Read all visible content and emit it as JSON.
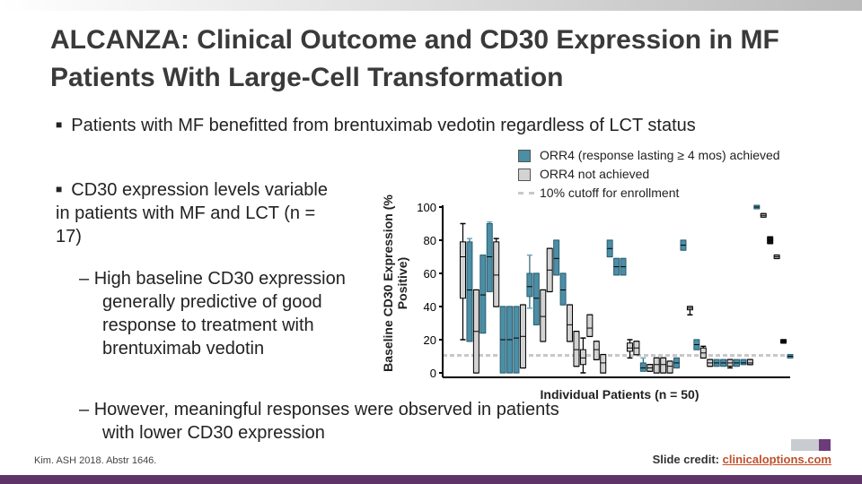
{
  "title": "ALCANZA: Clinical Outcome and CD30 Expression in MF Patients With Large-Cell Transformation",
  "bullets": [
    "Patients with MF benefitted from brentuximab vedotin regardless of LCT status",
    "CD30 expression levels variable in patients with MF and LCT (n = 17)"
  ],
  "subbullets": [
    "High baseline CD30 expression generally predictive of good response to treatment with brentuximab vedotin",
    "However, meaningful responses were observed in patients with lower CD30 expression"
  ],
  "footer": {
    "citation": "Kim. ASH 2018. Abstr 1646.",
    "credit_label": "Slide credit:",
    "credit_link": "clinicaloptions.com"
  },
  "colors": {
    "achieved": "#4b8ea6",
    "not_achieved": "#d3d3d3",
    "cutoff": "#c8c8c8",
    "accent": "#5e3468"
  },
  "chart_data": {
    "type": "box",
    "xlabel": "Individual Patients (n = 50)",
    "ylabel": "Baseline CD30 Expression (% Positive)",
    "ylim": [
      0,
      100
    ],
    "yticks": [
      0,
      20,
      40,
      60,
      80,
      100
    ],
    "cutoff": 10,
    "legend": [
      "ORR4 (response lasting ≥ 4 mos) achieved",
      "ORR4 not achieved",
      "10% cutoff for enrollment"
    ],
    "legend_placement": "top-right",
    "patients": [
      {
        "q1": 45,
        "med": 70,
        "q3": 79,
        "lo": 20,
        "hi": 90,
        "r": 0
      },
      {
        "q1": 19,
        "med": 50,
        "q3": 79,
        "lo": 19,
        "hi": 81,
        "r": 1
      },
      {
        "q1": 0,
        "med": 25,
        "q3": 50,
        "lo": 0,
        "hi": 50,
        "r": 0
      },
      {
        "q1": 24,
        "med": 47,
        "q3": 71,
        "lo": 24,
        "hi": 71,
        "r": 1
      },
      {
        "q1": 49,
        "med": 70,
        "q3": 90,
        "lo": 49,
        "hi": 91,
        "r": 1
      },
      {
        "q1": 40,
        "med": 59,
        "q3": 79,
        "lo": 40,
        "hi": 81,
        "r": 0
      },
      {
        "q1": 0,
        "med": 20,
        "q3": 40,
        "lo": 0,
        "hi": 40,
        "r": 1
      },
      {
        "q1": 0,
        "med": 20,
        "q3": 40,
        "lo": 0,
        "hi": 40,
        "r": 1
      },
      {
        "q1": 0,
        "med": 21,
        "q3": 40,
        "lo": 0,
        "hi": 40,
        "r": 1
      },
      {
        "q1": 3,
        "med": 22,
        "q3": 41,
        "lo": 3,
        "hi": 41,
        "r": 0
      },
      {
        "q1": 46,
        "med": 52,
        "q3": 60,
        "lo": 39,
        "hi": 71,
        "r": 1
      },
      {
        "q1": 29,
        "med": 45,
        "q3": 60,
        "lo": 29,
        "hi": 60,
        "r": 1
      },
      {
        "q1": 19,
        "med": 34,
        "q3": 50,
        "lo": 19,
        "hi": 50,
        "r": 0
      },
      {
        "q1": 49,
        "med": 62,
        "q3": 75,
        "lo": 49,
        "hi": 75,
        "r": 0
      },
      {
        "q1": 59,
        "med": 69,
        "q3": 80,
        "lo": 59,
        "hi": 80,
        "r": 1
      },
      {
        "q1": 41,
        "med": 50,
        "q3": 60,
        "lo": 41,
        "hi": 60,
        "r": 1
      },
      {
        "q1": 19,
        "med": 29,
        "q3": 41,
        "lo": 19,
        "hi": 41,
        "r": 0
      },
      {
        "q1": 4,
        "med": 14,
        "q3": 25,
        "lo": 4,
        "hi": 25,
        "r": 0
      },
      {
        "q1": 5,
        "med": 9,
        "q3": 14,
        "lo": 0,
        "hi": 21,
        "r": 0
      },
      {
        "q1": 22,
        "med": 27,
        "q3": 35,
        "lo": 22,
        "hi": 35,
        "r": 0
      },
      {
        "q1": 8,
        "med": 14,
        "q3": 19,
        "lo": 8,
        "hi": 19,
        "r": 0
      },
      {
        "q1": 0,
        "med": 6,
        "q3": 11,
        "lo": 0,
        "hi": 11,
        "r": 0
      },
      {
        "q1": 70,
        "med": 75,
        "q3": 80,
        "lo": 70,
        "hi": 80,
        "r": 1
      },
      {
        "q1": 59,
        "med": 64,
        "q3": 69,
        "lo": 59,
        "hi": 69,
        "r": 1
      },
      {
        "q1": 59,
        "med": 64,
        "q3": 69,
        "lo": 59,
        "hi": 69,
        "r": 1
      },
      {
        "q1": 13,
        "med": 15,
        "q3": 18,
        "lo": 9,
        "hi": 20,
        "r": 0
      },
      {
        "q1": 11,
        "med": 15,
        "q3": 19,
        "lo": 11,
        "hi": 19,
        "r": 0
      },
      {
        "q1": 1,
        "med": 3,
        "q3": 6,
        "lo": 1,
        "hi": 9,
        "r": 1
      },
      {
        "q1": 1,
        "med": 3,
        "q3": 5,
        "lo": 1,
        "hi": 5,
        "r": 0
      },
      {
        "q1": 0,
        "med": 5,
        "q3": 9,
        "lo": 0,
        "hi": 9,
        "r": 0
      },
      {
        "q1": 0,
        "med": 5,
        "q3": 9,
        "lo": 0,
        "hi": 9,
        "r": 0
      },
      {
        "q1": 0,
        "med": 4,
        "q3": 7,
        "lo": 0,
        "hi": 7,
        "r": 0
      },
      {
        "q1": 3,
        "med": 6,
        "q3": 9,
        "lo": 3,
        "hi": 9,
        "r": 1
      },
      {
        "q1": 74,
        "med": 77,
        "q3": 80,
        "lo": 74,
        "hi": 80,
        "r": 1
      },
      {
        "q1": 38,
        "med": 39,
        "q3": 40,
        "lo": 35,
        "hi": 40,
        "r": 0
      },
      {
        "q1": 14,
        "med": 17,
        "q3": 20,
        "lo": 14,
        "hi": 20,
        "r": 1
      },
      {
        "q1": 9,
        "med": 12,
        "q3": 15,
        "lo": 9,
        "hi": 16,
        "r": 0
      },
      {
        "q1": 4,
        "med": 6,
        "q3": 8,
        "lo": 4,
        "hi": 8,
        "r": 0
      },
      {
        "q1": 4,
        "med": 6,
        "q3": 8,
        "lo": 4,
        "hi": 8,
        "r": 1
      },
      {
        "q1": 4,
        "med": 6,
        "q3": 8,
        "lo": 4,
        "hi": 8,
        "r": 1
      },
      {
        "q1": 4,
        "med": 6,
        "q3": 8,
        "lo": 3,
        "hi": 8,
        "r": 0
      },
      {
        "q1": 4,
        "med": 6,
        "q3": 8,
        "lo": 4,
        "hi": 8,
        "r": 1
      },
      {
        "q1": 5,
        "med": 6,
        "q3": 8,
        "lo": 5,
        "hi": 8,
        "r": 1
      },
      {
        "q1": 5,
        "med": 6,
        "q3": 8,
        "lo": 5,
        "hi": 8,
        "r": 0
      },
      {
        "q1": 99,
        "med": 100,
        "q3": 101,
        "lo": 99,
        "hi": 101,
        "r": 1
      },
      {
        "q1": 94,
        "med": 95,
        "q3": 96,
        "lo": 94,
        "hi": 96,
        "r": 0
      },
      {
        "q1": 78,
        "med": 80,
        "q3": 82,
        "lo": 78,
        "hi": 82,
        "r": 2
      },
      {
        "q1": 69,
        "med": 70,
        "q3": 71,
        "lo": 69,
        "hi": 71,
        "r": 0
      },
      {
        "q1": 18,
        "med": 19,
        "q3": 20,
        "lo": 18,
        "hi": 20,
        "r": 2
      },
      {
        "q1": 9,
        "med": 10,
        "q3": 11,
        "lo": 9,
        "hi": 11,
        "r": 1
      }
    ]
  }
}
